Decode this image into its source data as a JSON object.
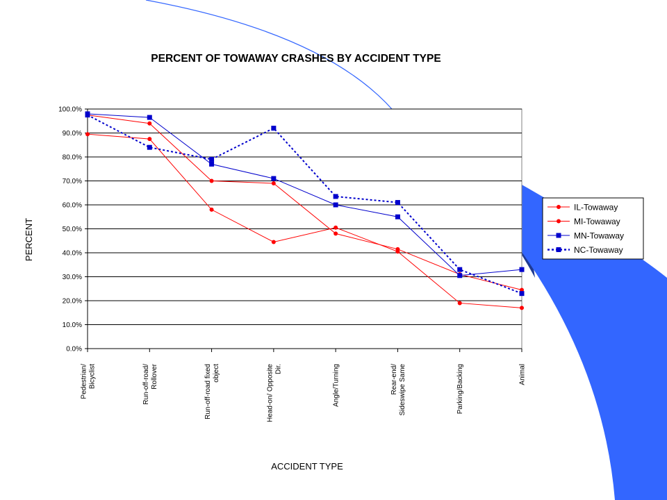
{
  "colors": {
    "background": "#ffffff",
    "decoration_dark": "#1f3a93",
    "decoration_light": "#3366ff",
    "red_series": "#ff0000",
    "blue_series": "#0000cc",
    "grid": "#000000"
  },
  "chart_data": {
    "type": "line",
    "title": "PERCENT OF TOWAWAY CRASHES BY ACCIDENT TYPE",
    "xlabel": "ACCIDENT TYPE",
    "ylabel": "PERCENT",
    "ylim": [
      0,
      100
    ],
    "yticks": [
      "0.0%",
      "10.0%",
      "20.0%",
      "30.0%",
      "40.0%",
      "50.0%",
      "60.0%",
      "70.0%",
      "80.0%",
      "90.0%",
      "100.0%"
    ],
    "categories": [
      [
        "Pedestrian/",
        "Bicyclist"
      ],
      [
        "Run-off-road/",
        "Rollover"
      ],
      [
        "Run-off-road fixed",
        "object"
      ],
      [
        "Head-on/ Opposite",
        "Dir."
      ],
      [
        "Angle/Turning"
      ],
      [
        "Rear-end/",
        "Sideswipe Same"
      ],
      [
        "Parking/Backing"
      ],
      [
        "Animal"
      ]
    ],
    "legend_position": "right",
    "grid": true,
    "series": [
      {
        "name": "IL-Towaway",
        "color": "#ff0000",
        "marker": "circle",
        "dash": "solid",
        "values": [
          89.5,
          87.5,
          58.0,
          44.5,
          50.5,
          40.5,
          19.0,
          17.0
        ]
      },
      {
        "name": "MI-Towaway",
        "color": "#ff0000",
        "marker": "circle",
        "dash": "solid",
        "values": [
          97.5,
          94.0,
          70.0,
          69.0,
          48.0,
          41.5,
          31.0,
          24.5
        ]
      },
      {
        "name": "MN-Towaway",
        "color": "#0000cc",
        "marker": "square",
        "dash": "solid",
        "values": [
          98.0,
          96.5,
          77.0,
          71.0,
          60.0,
          55.0,
          30.5,
          33.0
        ]
      },
      {
        "name": "NC-Towaway",
        "color": "#0000cc",
        "marker": "square",
        "dash": "dotted",
        "values": [
          97.5,
          84.0,
          79.0,
          92.0,
          63.5,
          61.0,
          33.0,
          23.0
        ]
      }
    ]
  }
}
